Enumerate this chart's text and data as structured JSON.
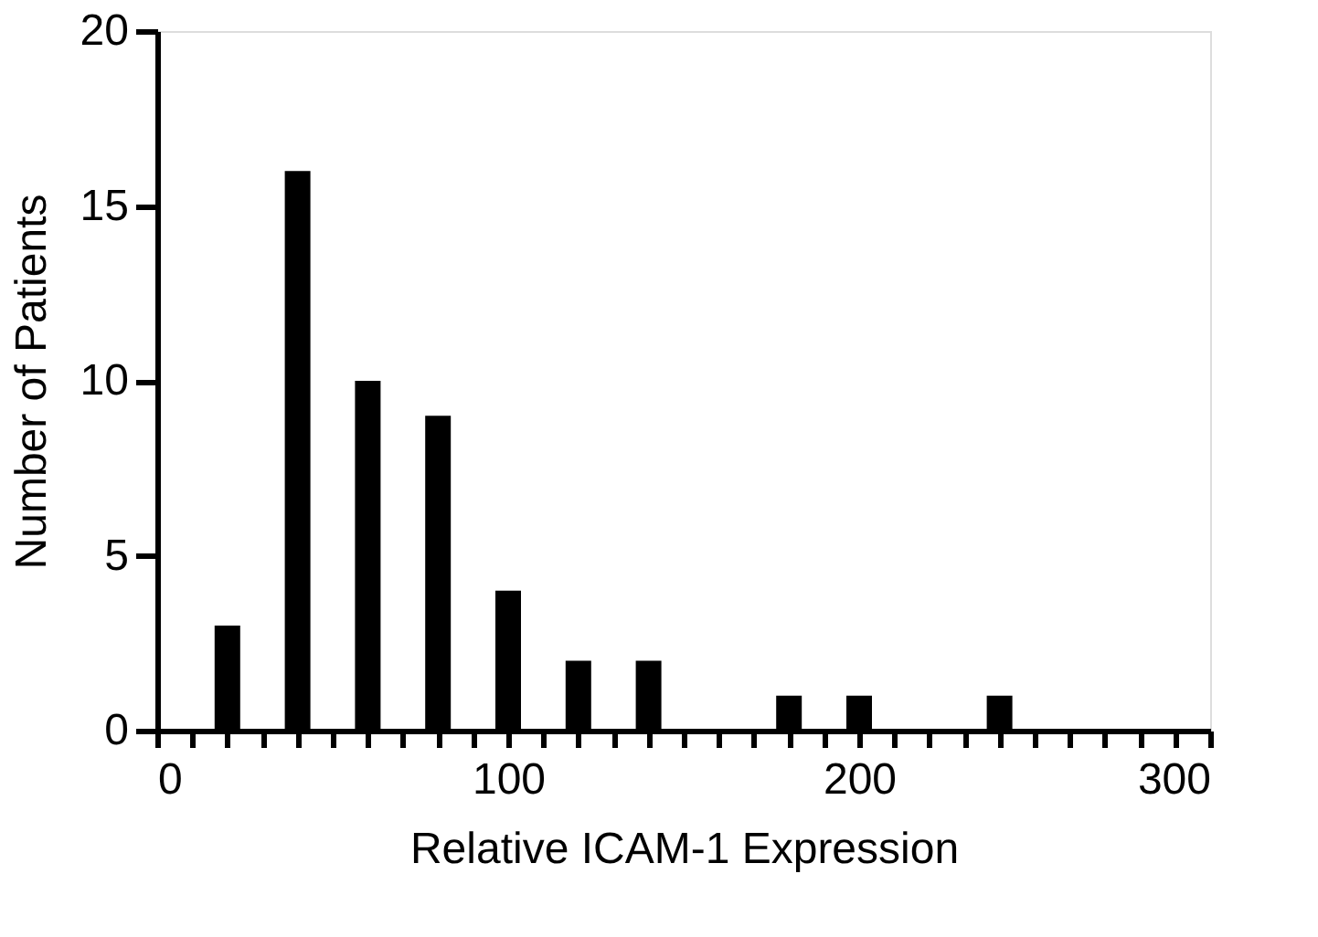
{
  "chart_data": {
    "type": "bar",
    "xlabel": "Relative ICAM-1 Expression",
    "ylabel": "Number of Patients",
    "x": [
      20,
      40,
      60,
      80,
      100,
      120,
      140,
      160,
      180,
      200,
      220,
      240
    ],
    "values": [
      3,
      16,
      10,
      9,
      4,
      2,
      2,
      0,
      1,
      1,
      0,
      1
    ],
    "color": "#000000",
    "xlim": [
      0,
      300
    ],
    "xticks": [
      0,
      {
        "value": 10,
        "label": null
      },
      {
        "value": 20,
        "label": null
      },
      {
        "value": 30,
        "label": null
      },
      {
        "value": 40,
        "label": null
      },
      {
        "value": 50,
        "label": null
      },
      {
        "value": 60,
        "label": null
      },
      {
        "value": 70,
        "label": null
      },
      {
        "value": 80,
        "label": null
      },
      {
        "value": 90,
        "label": null
      },
      100,
      {
        "value": 110,
        "label": null
      },
      {
        "value": 120,
        "label": null
      },
      {
        "value": 130,
        "label": null
      },
      {
        "value": 140,
        "label": null
      },
      {
        "value": 150,
        "label": null
      },
      {
        "value": 160,
        "label": null
      },
      {
        "value": 170,
        "label": null
      },
      {
        "value": 180,
        "label": null
      },
      {
        "value": 190,
        "label": null
      },
      200,
      {
        "value": 210,
        "label": null
      },
      {
        "value": 220,
        "label": null
      },
      {
        "value": 230,
        "label": null
      },
      {
        "value": 240,
        "label": null
      },
      {
        "value": 250,
        "label": null
      },
      {
        "value": 260,
        "label": null
      },
      {
        "value": 270,
        "label": null
      },
      {
        "value": 280,
        "label": null
      },
      {
        "value": 290,
        "label": null
      },
      300
    ],
    "ylim": [
      0,
      20
    ],
    "yticks": [
      0,
      5,
      10,
      15,
      20
    ],
    "grid": false
  }
}
